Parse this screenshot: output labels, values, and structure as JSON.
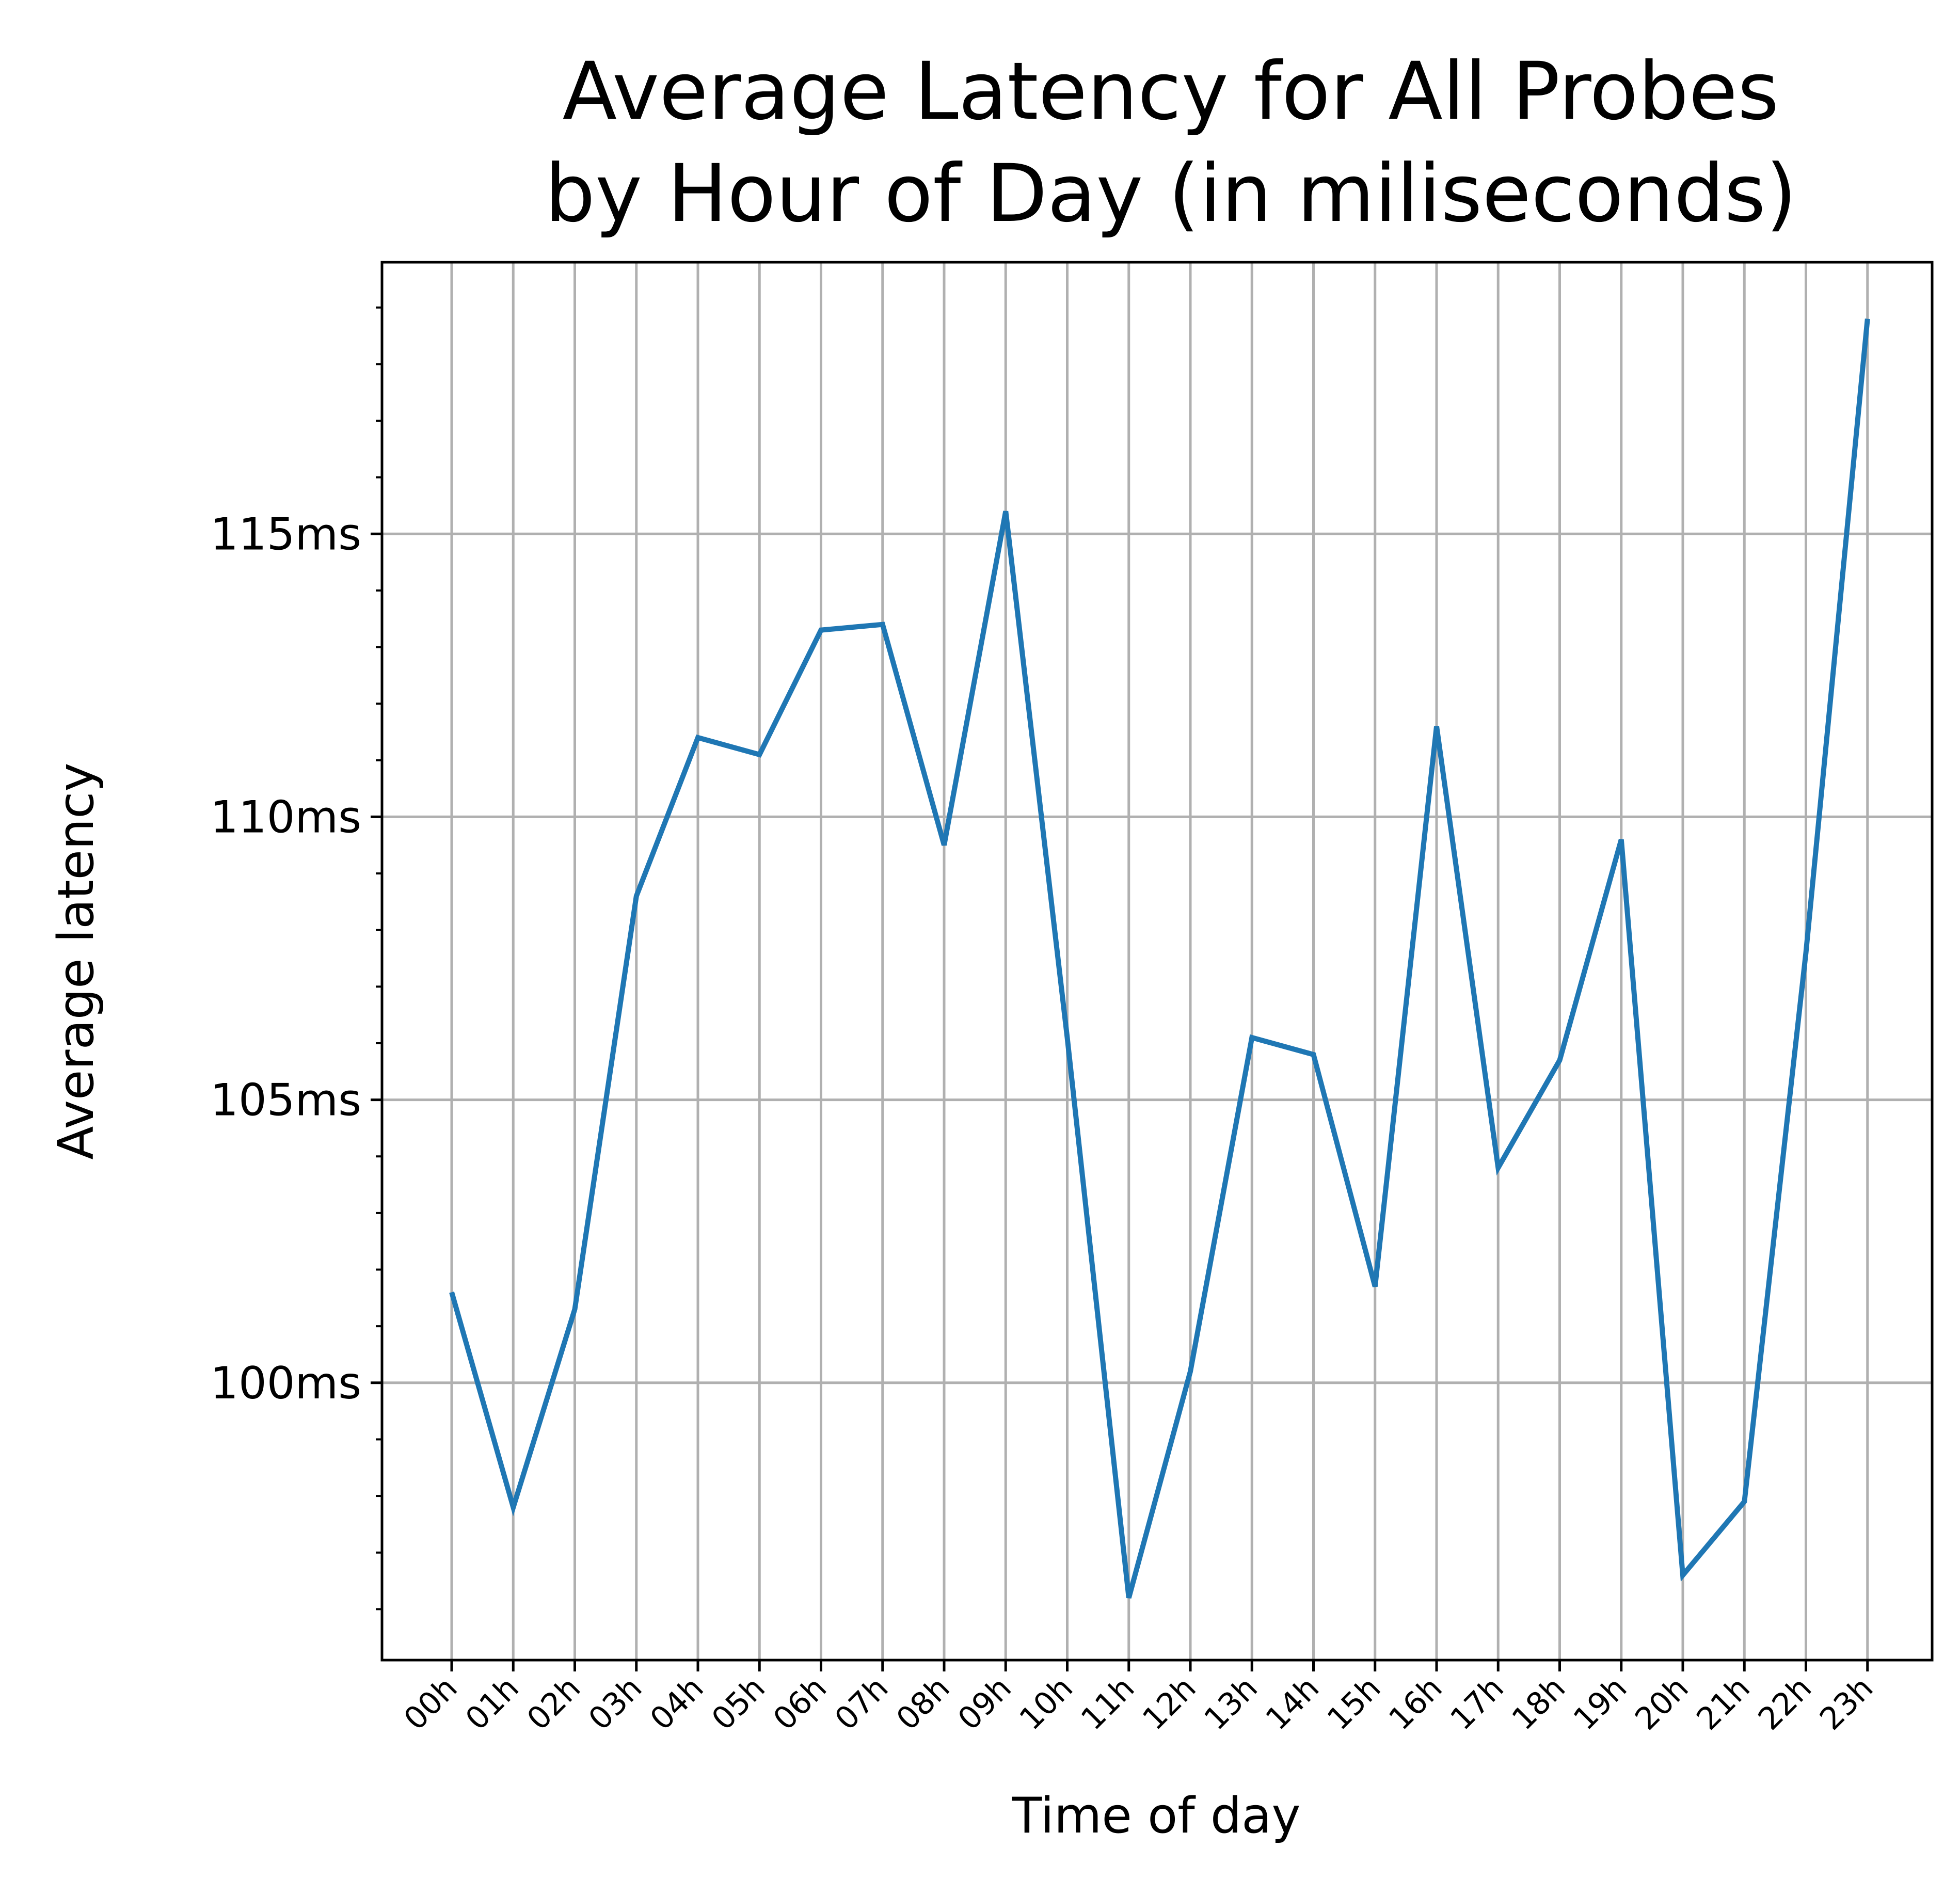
{
  "chart_data": {
    "type": "line",
    "title_lines": [
      "Average Latency for All Probes",
      "by Hour of Day (in miliseconds)"
    ],
    "xlabel": "Time of day",
    "ylabel": "Average latency",
    "categories": [
      "00h",
      "01h",
      "02h",
      "03h",
      "04h",
      "05h",
      "06h",
      "07h",
      "08h",
      "09h",
      "10h",
      "11h",
      "12h",
      "13h",
      "14h",
      "15h",
      "16h",
      "17h",
      "18h",
      "19h",
      "20h",
      "21h",
      "22h",
      "23h"
    ],
    "series": [
      {
        "values": [
          101.6,
          97.8,
          101.3,
          108.6,
          111.4,
          111.1,
          113.3,
          113.4,
          109.5,
          115.4,
          106.1,
          96.2,
          100.2,
          106.1,
          105.8,
          101.7,
          111.6,
          103.8,
          105.7,
          109.6,
          96.6,
          97.9,
          107.6,
          118.8
        ],
        "color": "#1f77b4"
      }
    ],
    "ylim": [
      95.1,
      119.8
    ],
    "yticks": [
      100,
      105,
      110,
      115
    ],
    "ytick_labels": [
      "100ms",
      "105ms",
      "110ms",
      "115ms"
    ],
    "y_minor_tick_step": 1,
    "grid": true,
    "legend": "none"
  }
}
